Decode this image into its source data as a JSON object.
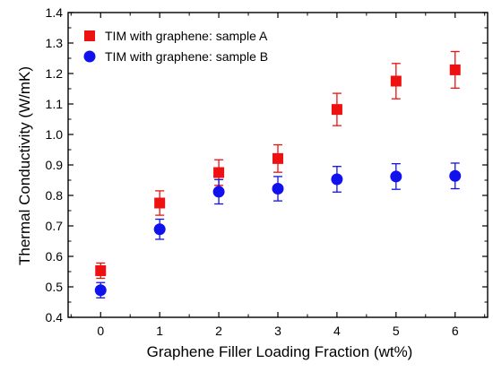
{
  "chart_data": {
    "type": "scatter",
    "title": "",
    "xlabel": "Graphene Filler Loading Fraction  (wt%)",
    "ylabel": "Thermal Conductivity (W/mK)",
    "xlim": [
      -0.55,
      6.55
    ],
    "ylim": [
      0.4,
      1.4
    ],
    "x_ticks": [
      0,
      1,
      2,
      3,
      4,
      5,
      6
    ],
    "y_ticks": [
      0.4,
      0.5,
      0.6,
      0.7,
      0.8,
      0.9,
      1.0,
      1.1,
      1.2,
      1.3,
      1.4
    ],
    "x_tick_labels": [
      "0",
      "1",
      "2",
      "3",
      "4",
      "5",
      "6"
    ],
    "y_tick_labels": [
      "0.4",
      "0.5",
      "0.6",
      "0.7",
      "0.8",
      "0.9",
      "1.0",
      "1.1",
      "1.2",
      "1.3",
      "1.4"
    ],
    "grid": false,
    "legend_position": "top-left",
    "series": [
      {
        "name": "TIM with graphene: sample A",
        "marker": "square",
        "color": "#ee1111",
        "x": [
          0,
          1,
          2,
          3,
          4,
          5,
          6
        ],
        "y": [
          0.553,
          0.775,
          0.875,
          0.921,
          1.082,
          1.175,
          1.212
        ],
        "error": [
          0.025,
          0.04,
          0.042,
          0.045,
          0.053,
          0.058,
          0.06
        ]
      },
      {
        "name": "TIM with graphene: sample B",
        "marker": "circle",
        "color": "#1111ee",
        "x": [
          0,
          1,
          2,
          3,
          4,
          5,
          6
        ],
        "y": [
          0.489,
          0.689,
          0.812,
          0.822,
          0.853,
          0.862,
          0.864
        ],
        "error": [
          0.025,
          0.033,
          0.04,
          0.04,
          0.042,
          0.042,
          0.042
        ]
      }
    ]
  }
}
